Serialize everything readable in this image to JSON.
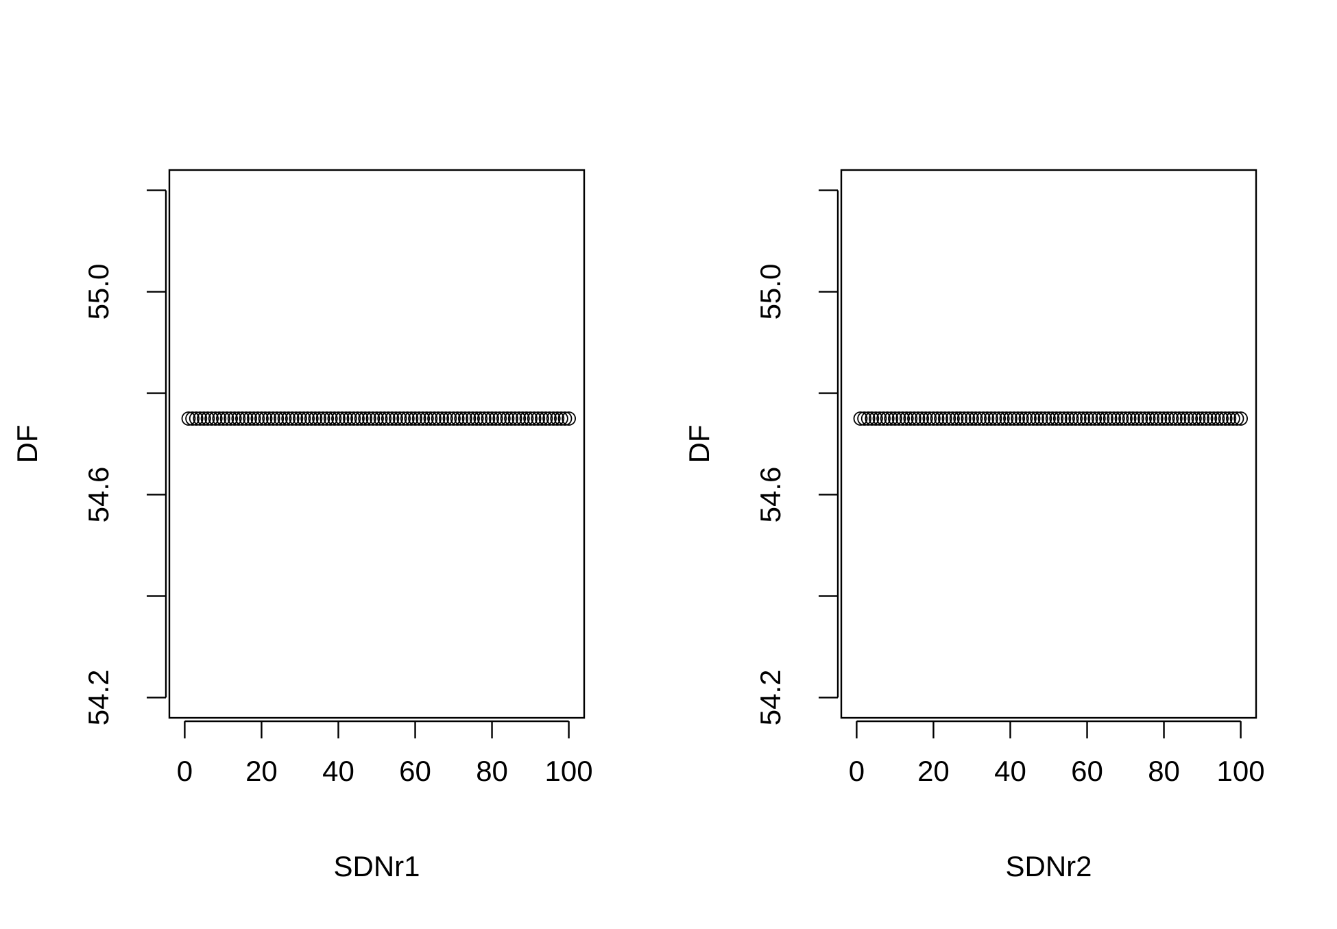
{
  "chart_data": [
    {
      "type": "scatter",
      "xlabel": "SDNr1",
      "ylabel": "DF",
      "xlim": [
        0,
        100
      ],
      "ylim": [
        54.2,
        55.2
      ],
      "xticks": [
        0,
        20,
        40,
        60,
        80,
        100
      ],
      "xtick_labels": [
        "0",
        "20",
        "40",
        "60",
        "80",
        "100"
      ],
      "yticks": [
        54.2,
        54.4,
        54.6,
        54.8,
        55.0,
        55.2
      ],
      "ytick_labels": [
        "54.2",
        "",
        "54.6",
        "",
        "55.0",
        ""
      ],
      "grid": false,
      "marker": "open-circle",
      "series": [
        {
          "x_start": 1,
          "x_end": 100,
          "x_step": 1,
          "y": 54.75
        }
      ]
    },
    {
      "type": "scatter",
      "xlabel": "SDNr2",
      "ylabel": "DF",
      "xlim": [
        0,
        100
      ],
      "ylim": [
        54.2,
        55.2
      ],
      "xticks": [
        0,
        20,
        40,
        60,
        80,
        100
      ],
      "xtick_labels": [
        "0",
        "20",
        "40",
        "60",
        "80",
        "100"
      ],
      "yticks": [
        54.2,
        54.4,
        54.6,
        54.8,
        55.0,
        55.2
      ],
      "ytick_labels": [
        "54.2",
        "",
        "54.6",
        "",
        "55.0",
        ""
      ],
      "grid": false,
      "marker": "open-circle",
      "series": [
        {
          "x_start": 1,
          "x_end": 100,
          "x_step": 1,
          "y": 54.75
        }
      ]
    }
  ]
}
